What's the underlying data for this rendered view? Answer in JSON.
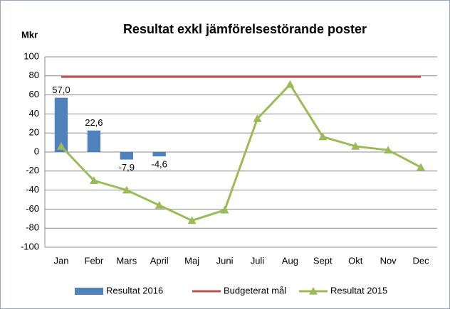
{
  "chart_data": {
    "type": "combo",
    "title": "Resultat exkl jämförelsestörande poster",
    "ylabel": "Mkr",
    "categories": [
      "Jan",
      "Febr",
      "Mars",
      "April",
      "Maj",
      "Juni",
      "Juli",
      "Aug",
      "Sept",
      "Okt",
      "Nov",
      "Dec"
    ],
    "series": [
      {
        "name": "Resultat 2016",
        "type": "bar",
        "color": "#4f81bd",
        "values": [
          57.0,
          22.6,
          -7.9,
          -4.6,
          null,
          null,
          null,
          null,
          null,
          null,
          null,
          null
        ],
        "value_labels": [
          "57,0",
          "22,6",
          "-7,9",
          "-4,6",
          null,
          null,
          null,
          null,
          null,
          null,
          null,
          null
        ]
      },
      {
        "name": "Budgeterat mål",
        "type": "line",
        "color": "#c0504d",
        "values": [
          79,
          79,
          79,
          79,
          79,
          79,
          79,
          79,
          79,
          79,
          79,
          79
        ]
      },
      {
        "name": "Resultat 2015",
        "type": "line",
        "marker": "triangle",
        "color": "#9bbb59",
        "values": [
          6,
          -30,
          -40,
          -56,
          -72,
          -61,
          35,
          71,
          16,
          6,
          2,
          -16
        ]
      }
    ],
    "ylim": [
      -100,
      100
    ],
    "yticks": [
      -100,
      -80,
      -60,
      -40,
      -20,
      0,
      20,
      40,
      60,
      80,
      100
    ],
    "grid": true,
    "legend": "bottom"
  }
}
